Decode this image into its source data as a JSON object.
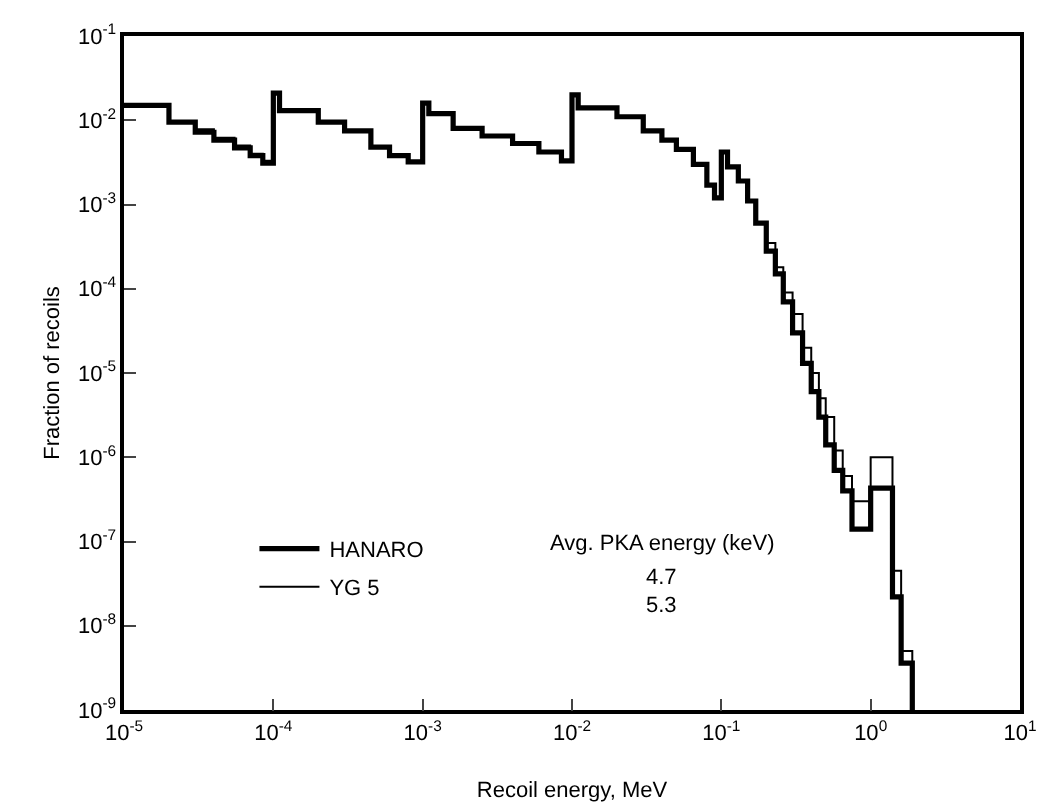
{
  "chart_data": {
    "type": "step",
    "xlabel": "Recoil energy, MeV",
    "ylabel": "Fraction of recoils",
    "log": "xy",
    "grid": false,
    "legend": "bottom left",
    "marker": "none",
    "line_style": "solid",
    "xlim": [
      1e-05,
      10
    ],
    "ylim": [
      1e-09,
      0.1
    ],
    "xticks": [
      {
        "value": 1e-05,
        "label": "10$^{-5}$"
      },
      {
        "value": 0.0001,
        "label": "10$^{-4}$"
      },
      {
        "value": 0.001,
        "label": "10$^{-3}$"
      },
      {
        "value": 0.01,
        "label": "10$^{-2}$"
      },
      {
        "value": 0.1,
        "label": "10$^{-1}$"
      },
      {
        "value": 1,
        "label": "10$^{0}$"
      },
      {
        "value": 10,
        "label": "10$^{1}$"
      }
    ],
    "yticks": [
      {
        "value": 1e-09,
        "label": "10$^{-9}$"
      },
      {
        "value": 1e-08,
        "label": "10$^{-8}$"
      },
      {
        "value": 1e-07,
        "label": "10$^{-7}$"
      },
      {
        "value": 1e-06,
        "label": "10$^{-6}$"
      },
      {
        "value": 1e-05,
        "label": "10$^{-5}$"
      },
      {
        "value": 0.0001,
        "label": "10$^{-4}$"
      },
      {
        "value": 0.001,
        "label": "10$^{-3}$"
      },
      {
        "value": 0.01,
        "label": "10$^{-2}$"
      },
      {
        "value": 0.1,
        "label": "10$^{-1}$"
      }
    ],
    "annotations": [
      "Avg. PKA energy (keV)",
      "4.7",
      "5.3"
    ],
    "series": [
      {
        "name": "HANARO",
        "color": "#000000",
        "x": [
          1e-05,
          2e-05,
          3e-05,
          4e-05,
          5.5e-05,
          7e-05,
          8.5e-05,
          0.0001,
          0.00011,
          0.0002,
          0.0003,
          0.00045,
          0.0006,
          0.0008,
          0.001,
          0.0011,
          0.0016,
          0.0025,
          0.004,
          0.006,
          0.0085,
          0.01,
          0.011,
          0.02,
          0.03,
          0.04,
          0.05,
          0.065,
          0.08,
          0.09,
          0.1,
          0.11,
          0.13,
          0.15,
          0.17,
          0.2,
          0.23,
          0.26,
          0.3,
          0.35,
          0.4,
          0.45,
          0.5,
          0.57,
          0.65,
          0.75,
          1.0,
          1.4,
          1.6,
          1.9
        ],
        "values": [
          0.015,
          0.0095,
          0.0072,
          0.0058,
          0.0047,
          0.0038,
          0.0031,
          0.021,
          0.013,
          0.0095,
          0.0075,
          0.0048,
          0.0038,
          0.0032,
          0.016,
          0.012,
          0.008,
          0.0065,
          0.0053,
          0.0042,
          0.0033,
          0.02,
          0.014,
          0.011,
          0.0075,
          0.0058,
          0.0045,
          0.003,
          0.0017,
          0.0012,
          0.0042,
          0.0028,
          0.0019,
          0.0011,
          0.0006,
          0.00028,
          0.00015,
          7e-05,
          3e-05,
          1.3e-05,
          6e-06,
          3e-06,
          1.4e-06,
          7e-07,
          4e-07,
          1.4e-07,
          4.3e-07,
          2.2e-08,
          3.6e-09,
          1e-09
        ]
      },
      {
        "name": "YG 5",
        "color": "#000000",
        "x": [
          1e-05,
          2e-05,
          3e-05,
          4e-05,
          5.5e-05,
          7e-05,
          8.5e-05,
          0.0001,
          0.00011,
          0.0002,
          0.0003,
          0.00045,
          0.0006,
          0.0008,
          0.001,
          0.0011,
          0.0016,
          0.0025,
          0.004,
          0.006,
          0.0085,
          0.01,
          0.011,
          0.02,
          0.03,
          0.04,
          0.05,
          0.065,
          0.08,
          0.09,
          0.1,
          0.11,
          0.13,
          0.15,
          0.17,
          0.2,
          0.23,
          0.26,
          0.3,
          0.35,
          0.4,
          0.45,
          0.5,
          0.57,
          0.65,
          0.75,
          1.0,
          1.4,
          1.6,
          1.9
        ],
        "values": [
          0.015,
          0.0095,
          0.0078,
          0.0062,
          0.005,
          0.004,
          0.0033,
          0.021,
          0.013,
          0.0095,
          0.0075,
          0.0048,
          0.0038,
          0.0032,
          0.016,
          0.012,
          0.008,
          0.0065,
          0.0053,
          0.0042,
          0.0033,
          0.02,
          0.014,
          0.011,
          0.0075,
          0.0058,
          0.0045,
          0.003,
          0.0017,
          0.0012,
          0.0042,
          0.0028,
          0.0019,
          0.0011,
          0.0006,
          0.00035,
          0.00018,
          9e-05,
          5e-05,
          2e-05,
          1e-05,
          5e-06,
          3e-06,
          1.2e-06,
          6e-07,
          3e-07,
          1e-06,
          4.5e-08,
          5e-09,
          1e-09
        ]
      }
    ]
  }
}
